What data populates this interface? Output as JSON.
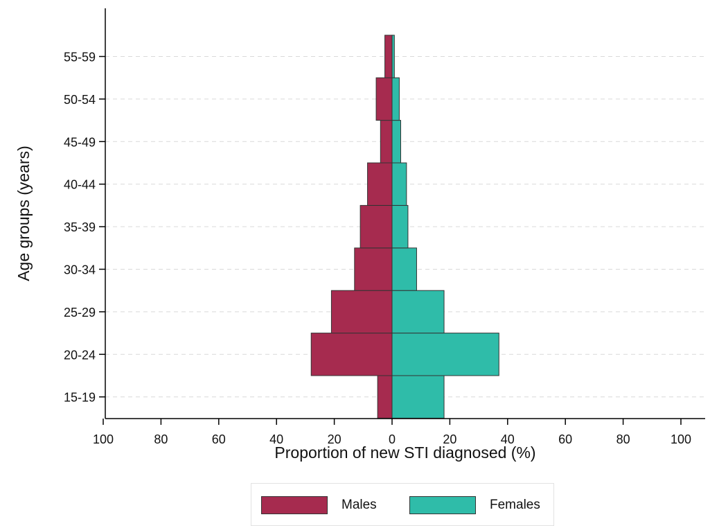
{
  "chart_data": {
    "type": "bar",
    "orientation": "horizontal",
    "subtype": "population-pyramid",
    "categories": [
      "15-19",
      "20-24",
      "25-29",
      "30-34",
      "35-39",
      "40-44",
      "45-49",
      "50-54",
      "55-59"
    ],
    "series": [
      {
        "name": "Males",
        "values": [
          5,
          28,
          21,
          13,
          11,
          8.5,
          4,
          5.5,
          2.5
        ],
        "color": "#a62b4f",
        "side": "left"
      },
      {
        "name": "Females",
        "values": [
          18,
          37,
          18,
          8.5,
          5.5,
          5,
          3,
          2.5,
          0.8
        ],
        "color": "#2fbca9",
        "side": "right"
      }
    ],
    "xlabel": "Proportion of new STI diagnosed (%)",
    "ylabel": "Age groups (years)",
    "xticks": [
      -100,
      -80,
      -60,
      -40,
      -20,
      0,
      20,
      40,
      60,
      80,
      100
    ],
    "xtick_labels": [
      "100",
      "80",
      "60",
      "40",
      "20",
      "0",
      "20",
      "40",
      "60",
      "80",
      "100"
    ],
    "xlim": [
      -100,
      100
    ],
    "grid": "horizontal dashed",
    "legend_position": "bottom"
  }
}
